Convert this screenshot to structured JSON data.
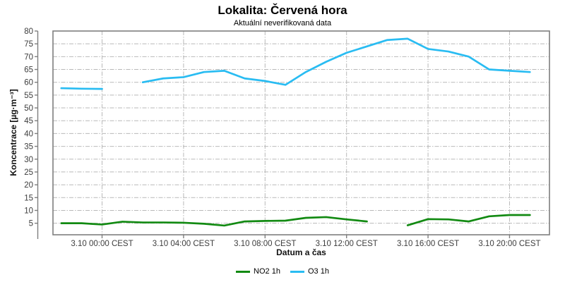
{
  "chart_data": {
    "type": "line",
    "title": "Lokalita: Červená hora",
    "subtitle": "Aktuální neverifikovaná data",
    "xlabel": "Datum a čas",
    "ylabel": "Koncentrace [µg·m⁻³]",
    "ylim": [
      0.5,
      80
    ],
    "yticks": [
      5,
      10,
      15,
      20,
      25,
      30,
      35,
      40,
      45,
      50,
      55,
      60,
      65,
      70,
      75,
      80
    ],
    "xlim": [
      -0.41,
      23.96
    ],
    "xticks": [
      {
        "x": 2,
        "label": "3.10 00:00 CEST"
      },
      {
        "x": 6,
        "label": "3.10 04:00 CEST"
      },
      {
        "x": 10,
        "label": "3.10 08:00 CEST"
      },
      {
        "x": 14,
        "label": "3.10 12:00 CEST"
      },
      {
        "x": 18,
        "label": "3.10 16:00 CEST"
      },
      {
        "x": 22,
        "label": "3.10 20:00 CEST"
      }
    ],
    "grid": "dashed",
    "legend_position": "bottom-center",
    "times": [
      "2.10 22:00",
      "2.10 23:00",
      "3.10 00:00",
      "3.10 01:00",
      "3.10 02:00",
      "3.10 03:00",
      "3.10 04:00",
      "3.10 05:00",
      "3.10 06:00",
      "3.10 07:00",
      "3.10 08:00",
      "3.10 09:00",
      "3.10 10:00",
      "3.10 11:00",
      "3.10 12:00",
      "3.10 13:00",
      "3.10 14:00",
      "3.10 15:00",
      "3.10 16:00",
      "3.10 17:00",
      "3.10 18:00",
      "3.10 19:00",
      "3.10 20:00",
      "3.10 21:00"
    ],
    "series": [
      {
        "id": "no2",
        "name": "NO2 1h",
        "color": "#128A12",
        "values": [
          5.0,
          5.0,
          4.5,
          5.6,
          5.3,
          5.3,
          5.2,
          4.8,
          4.1,
          5.7,
          5.9,
          6.0,
          7.1,
          7.4,
          6.5,
          5.7,
          null,
          4.2,
          6.6,
          6.5,
          5.7,
          7.7,
          8.2,
          8.2
        ]
      },
      {
        "id": "o3",
        "name": "O3 1h",
        "color": "#29BCF2",
        "values": [
          57.7,
          57.5,
          57.4,
          null,
          60.0,
          61.5,
          62.0,
          64.0,
          64.5,
          61.5,
          60.5,
          59.0,
          64.0,
          68.0,
          71.5,
          74.0,
          76.5,
          77.0,
          73.0,
          72.0,
          70.0,
          65.0,
          64.5,
          64.0
        ]
      }
    ]
  }
}
